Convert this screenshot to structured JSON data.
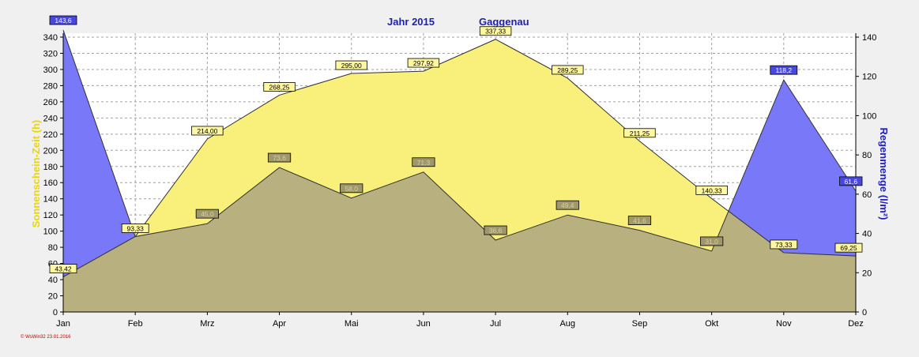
{
  "chart_data": {
    "type": "area",
    "title_left": "Jahr  2015",
    "title_right": "Gaggenau",
    "categories": [
      "Jan",
      "Feb",
      "Mrz",
      "Apr",
      "Mai",
      "Jun",
      "Jul",
      "Aug",
      "Sep",
      "Okt",
      "Nov",
      "Dez"
    ],
    "left_axis": {
      "label": "Sonnenschein-Zeit  (h)",
      "min": 0,
      "max": 340,
      "step": 20
    },
    "right_axis": {
      "label": "Regenmenge  (l/m²)",
      "min": 0,
      "max": 140,
      "step": 20
    },
    "sunshine": {
      "values": [
        43.42,
        93.33,
        214.0,
        268.25,
        295.0,
        297.92,
        337.33,
        289.25,
        211.25,
        140.33,
        73.33,
        69.25
      ],
      "labels": [
        "43,42",
        "93,33",
        "214,00",
        "268,25",
        "295,00",
        "297,92",
        "337,33",
        "289,25",
        "211,25",
        "140,33",
        "73,33",
        "69,25"
      ],
      "fill": "#f8f07a",
      "label_fill": "#fff8a0"
    },
    "rain": {
      "values": [
        143.6,
        38.4,
        45.0,
        73.6,
        58.0,
        71.3,
        36.6,
        49.4,
        41.6,
        31.0,
        118.2,
        61.6
      ],
      "labels": [
        "143,6",
        "",
        "45,0",
        "73,6",
        "58,0",
        "71,3",
        "36,6",
        "49,4",
        "41,6",
        "31,0",
        "118,2",
        "61,6"
      ],
      "fill": "#7878f8",
      "label_fill": "#4848e0"
    },
    "overlap_fill": "#b8b07e",
    "grid": true,
    "footer": "© WsWin32  23.01.2016"
  }
}
